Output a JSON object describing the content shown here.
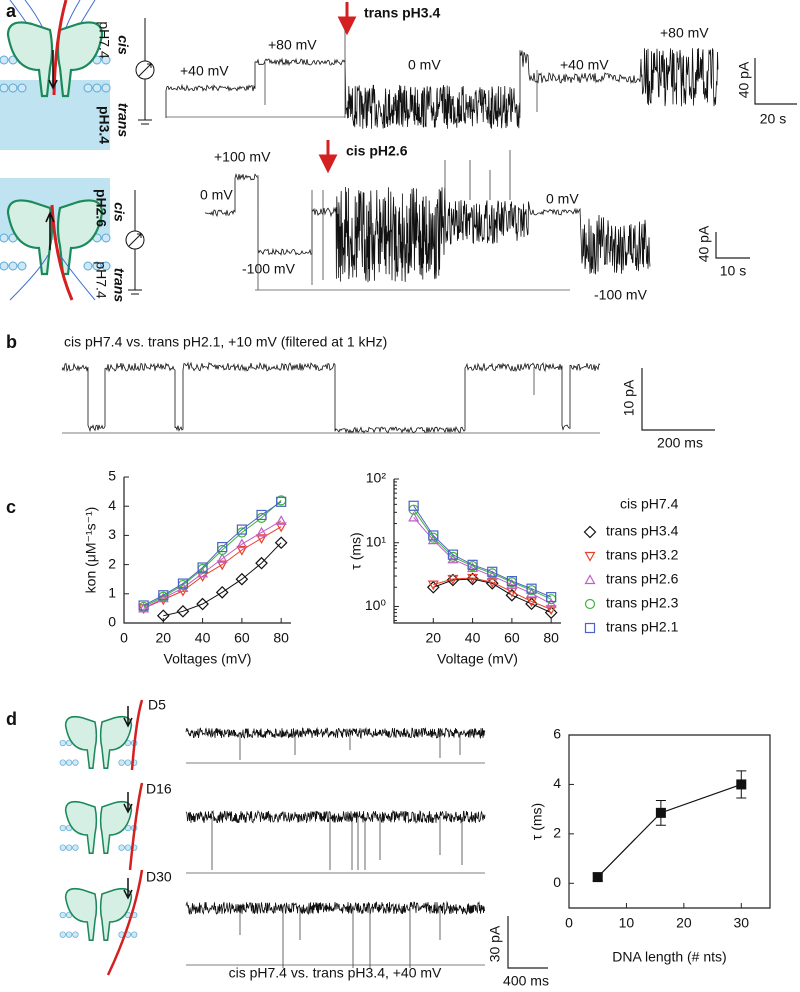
{
  "panel_labels": {
    "a": "a",
    "b": "b",
    "c": "c",
    "d": "d"
  },
  "panel_a": {
    "top": {
      "treatment": "trans pH3.4",
      "voltages": [
        "+40 mV",
        "+80 mV",
        "0 mV",
        "+40 mV",
        "+80 mV"
      ],
      "scale_current": "40 pA",
      "scale_time": "20 s",
      "side_cis": "cis",
      "side_trans": "trans",
      "ph_cis": "pH7.4",
      "ph_trans": "pH3.4"
    },
    "bottom": {
      "treatment": "cis pH2.6",
      "voltages": [
        "0 mV",
        "+100 mV",
        "-100 mV",
        "0 mV",
        "-100 mV"
      ],
      "scale_current": "40 pA",
      "scale_time": "10 s",
      "side_cis": "cis",
      "side_trans": "trans",
      "ph_cis": "pH2.6",
      "ph_trans": "pH7.4"
    }
  },
  "panel_b": {
    "caption": "cis pH7.4 vs. trans pH2.1, +10 mV (filtered at 1 kHz)",
    "scale_current": "10 pA",
    "scale_time": "200 ms"
  },
  "panel_d": {
    "constructs": [
      "D5",
      "D16",
      "D30"
    ],
    "caption": "cis pH7.4 vs. trans pH3.4, +40 mV",
    "scale_current": "30 pA",
    "scale_time": "400 ms"
  },
  "chart_data": [
    {
      "type": "line",
      "x_label": "Voltages (mV)",
      "y_label": "kon (μM⁻¹s⁻¹)",
      "x": [
        10,
        20,
        30,
        40,
        50,
        60,
        70,
        80
      ],
      "xlim": [
        0,
        85
      ],
      "xticks": [
        0,
        20,
        40,
        60,
        80
      ],
      "ylim": [
        0,
        5
      ],
      "yticks": [
        0,
        1,
        2,
        3,
        4,
        5
      ],
      "series": [
        {
          "name": "trans pH3.4",
          "color": "#111111",
          "marker": "diamond",
          "values": [
            null,
            0.25,
            0.4,
            0.65,
            1.05,
            1.5,
            2.05,
            2.75
          ]
        },
        {
          "name": "trans pH3.2",
          "color": "#e8412c",
          "marker": "triangle-down",
          "values": [
            0.5,
            0.8,
            1.1,
            1.6,
            2.0,
            2.5,
            2.9,
            3.3
          ]
        },
        {
          "name": "trans pH2.6",
          "color": "#c05ec8",
          "marker": "triangle-up",
          "values": [
            0.5,
            0.85,
            1.2,
            1.7,
            2.2,
            2.7,
            3.1,
            3.5
          ]
        },
        {
          "name": "trans pH2.3",
          "color": "#3db53d",
          "marker": "circle",
          "values": [
            0.55,
            0.9,
            1.3,
            1.85,
            2.5,
            3.1,
            3.6,
            4.2
          ]
        },
        {
          "name": "trans pH2.1",
          "color": "#4a63c4",
          "marker": "square",
          "values": [
            0.6,
            0.95,
            1.35,
            1.9,
            2.6,
            3.2,
            3.7,
            4.15
          ]
        }
      ]
    },
    {
      "type": "line",
      "x_label": "Voltage (mV)",
      "y_label": "τ (ms)",
      "log_y": true,
      "legend_title": "cis pH7.4",
      "x": [
        10,
        20,
        30,
        40,
        50,
        60,
        70,
        80
      ],
      "xlim": [
        0,
        85
      ],
      "xticks": [
        20,
        40,
        60,
        80
      ],
      "ylim": [
        0.55,
        100
      ],
      "yticks": [
        {
          "value": 1,
          "label": "10⁰"
        },
        {
          "value": 10,
          "label": "10¹"
        },
        {
          "value": 100,
          "label": "10²"
        }
      ],
      "series": [
        {
          "name": "trans pH3.4",
          "color": "#111111",
          "marker": "diamond",
          "values": [
            null,
            2.0,
            2.6,
            2.7,
            2.3,
            1.5,
            1.1,
            0.8
          ]
        },
        {
          "name": "trans pH3.2",
          "color": "#e8412c",
          "marker": "triangle-down",
          "values": [
            null,
            2.2,
            2.7,
            2.8,
            2.4,
            1.7,
            1.2,
            0.9
          ]
        },
        {
          "name": "trans pH2.6",
          "color": "#c05ec8",
          "marker": "triangle-up",
          "values": [
            25,
            11,
            5.5,
            4,
            3,
            2.2,
            1.6,
            1.1
          ]
        },
        {
          "name": "trans pH2.3",
          "color": "#3db53d",
          "marker": "circle",
          "values": [
            33,
            12,
            6,
            4.3,
            3.3,
            2.4,
            1.8,
            1.3
          ]
        },
        {
          "name": "trans pH2.1",
          "color": "#4a63c4",
          "marker": "square",
          "values": [
            38,
            13,
            6.5,
            4.5,
            3.5,
            2.5,
            1.9,
            1.4
          ]
        }
      ]
    },
    {
      "type": "errorline",
      "x_label": "DNA length (# nts)",
      "y_label": "τ (ms)",
      "color": "#111111",
      "x": [
        5,
        16,
        30
      ],
      "values": [
        0.25,
        2.85,
        4.0
      ],
      "errors": [
        0.15,
        0.5,
        0.55
      ],
      "xlim": [
        0,
        35
      ],
      "xticks": [
        0,
        10,
        20,
        30
      ],
      "ylim": [
        -1,
        6
      ],
      "yticks": [
        0,
        2,
        4,
        6
      ]
    }
  ]
}
